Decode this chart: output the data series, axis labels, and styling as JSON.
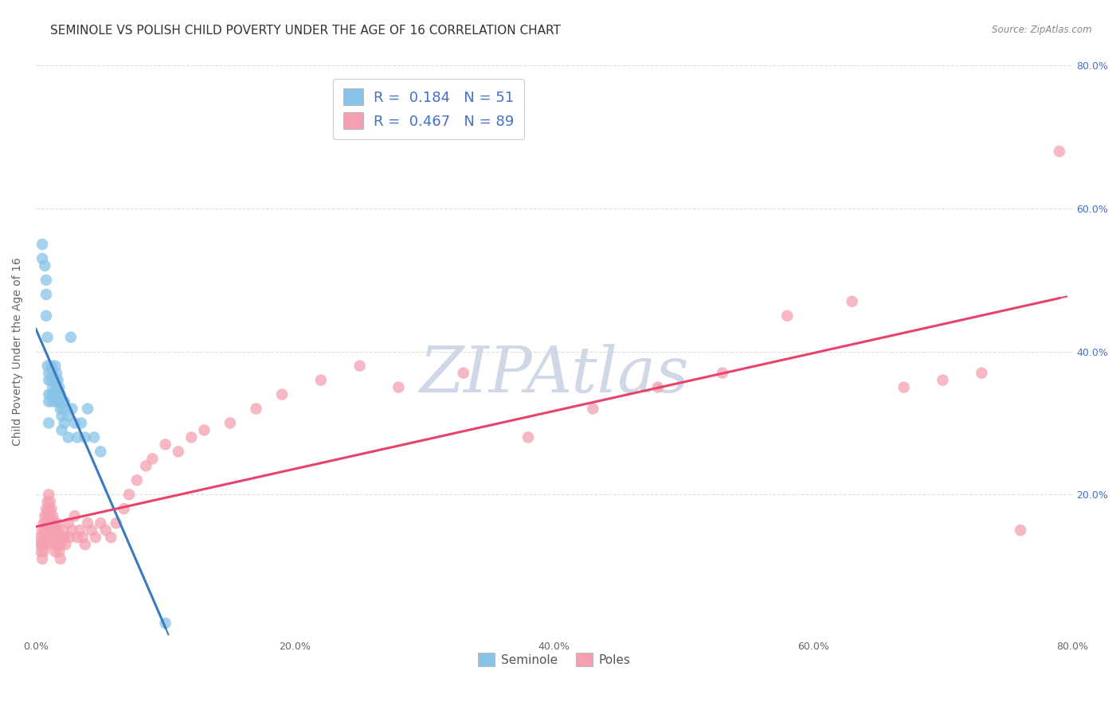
{
  "title": "SEMINOLE VS POLISH CHILD POVERTY UNDER THE AGE OF 16 CORRELATION CHART",
  "source": "Source: ZipAtlas.com",
  "ylabel": "Child Poverty Under the Age of 16",
  "xlim": [
    0.0,
    0.8
  ],
  "ylim": [
    0.0,
    0.8
  ],
  "xtick_labels": [
    "0.0%",
    "20.0%",
    "40.0%",
    "60.0%",
    "80.0%"
  ],
  "xtick_vals": [
    0.0,
    0.2,
    0.4,
    0.6,
    0.8
  ],
  "ytick_labels": [
    "20.0%",
    "40.0%",
    "60.0%",
    "80.0%"
  ],
  "ytick_vals": [
    0.2,
    0.4,
    0.6,
    0.8
  ],
  "seminole_R": "0.184",
  "seminole_N": "51",
  "poles_R": "0.467",
  "poles_N": "89",
  "seminole_color": "#88c4e8",
  "poles_color": "#f4a0b0",
  "seminole_line_color": "#3a7abf",
  "poles_line_color": "#e8436a",
  "dashed_line_color": "#aaccee",
  "watermark": "ZIPAtlas",
  "watermark_color": "#d0d8e8",
  "seminole_x": [
    0.005,
    0.005,
    0.007,
    0.008,
    0.008,
    0.008,
    0.009,
    0.009,
    0.01,
    0.01,
    0.01,
    0.01,
    0.01,
    0.012,
    0.012,
    0.012,
    0.013,
    0.013,
    0.013,
    0.014,
    0.014,
    0.015,
    0.015,
    0.015,
    0.016,
    0.016,
    0.016,
    0.017,
    0.017,
    0.018,
    0.018,
    0.019,
    0.019,
    0.02,
    0.02,
    0.02,
    0.021,
    0.022,
    0.022,
    0.025,
    0.025,
    0.027,
    0.028,
    0.03,
    0.032,
    0.035,
    0.038,
    0.04,
    0.045,
    0.05,
    0.1
  ],
  "seminole_y": [
    0.55,
    0.53,
    0.52,
    0.5,
    0.48,
    0.45,
    0.42,
    0.38,
    0.37,
    0.36,
    0.34,
    0.33,
    0.3,
    0.38,
    0.36,
    0.34,
    0.37,
    0.35,
    0.33,
    0.36,
    0.34,
    0.38,
    0.36,
    0.34,
    0.37,
    0.35,
    0.33,
    0.36,
    0.34,
    0.35,
    0.33,
    0.34,
    0.32,
    0.33,
    0.31,
    0.29,
    0.32,
    0.33,
    0.3,
    0.31,
    0.28,
    0.42,
    0.32,
    0.3,
    0.28,
    0.3,
    0.28,
    0.32,
    0.28,
    0.26,
    0.02
  ],
  "poles_x": [
    0.003,
    0.004,
    0.004,
    0.005,
    0.005,
    0.005,
    0.006,
    0.006,
    0.006,
    0.007,
    0.007,
    0.007,
    0.008,
    0.008,
    0.008,
    0.009,
    0.009,
    0.009,
    0.01,
    0.01,
    0.01,
    0.01,
    0.011,
    0.011,
    0.011,
    0.012,
    0.012,
    0.012,
    0.013,
    0.013,
    0.014,
    0.014,
    0.015,
    0.015,
    0.015,
    0.016,
    0.016,
    0.017,
    0.017,
    0.018,
    0.018,
    0.019,
    0.019,
    0.02,
    0.021,
    0.022,
    0.023,
    0.025,
    0.026,
    0.028,
    0.03,
    0.032,
    0.034,
    0.036,
    0.038,
    0.04,
    0.043,
    0.046,
    0.05,
    0.054,
    0.058,
    0.062,
    0.068,
    0.072,
    0.078,
    0.085,
    0.09,
    0.1,
    0.11,
    0.12,
    0.13,
    0.15,
    0.17,
    0.19,
    0.22,
    0.25,
    0.28,
    0.33,
    0.38,
    0.43,
    0.48,
    0.53,
    0.58,
    0.63,
    0.67,
    0.7,
    0.73,
    0.76,
    0.79
  ],
  "poles_y": [
    0.14,
    0.13,
    0.12,
    0.15,
    0.13,
    0.11,
    0.16,
    0.14,
    0.12,
    0.17,
    0.15,
    0.13,
    0.18,
    0.16,
    0.14,
    0.19,
    0.17,
    0.14,
    0.2,
    0.18,
    0.16,
    0.13,
    0.19,
    0.17,
    0.15,
    0.18,
    0.16,
    0.14,
    0.17,
    0.15,
    0.16,
    0.14,
    0.15,
    0.13,
    0.12,
    0.16,
    0.14,
    0.15,
    0.13,
    0.14,
    0.12,
    0.13,
    0.11,
    0.14,
    0.15,
    0.14,
    0.13,
    0.16,
    0.14,
    0.15,
    0.17,
    0.14,
    0.15,
    0.14,
    0.13,
    0.16,
    0.15,
    0.14,
    0.16,
    0.15,
    0.14,
    0.16,
    0.18,
    0.2,
    0.22,
    0.24,
    0.25,
    0.27,
    0.26,
    0.28,
    0.29,
    0.3,
    0.32,
    0.34,
    0.36,
    0.38,
    0.35,
    0.37,
    0.28,
    0.32,
    0.35,
    0.37,
    0.45,
    0.47,
    0.35,
    0.36,
    0.37,
    0.15,
    0.68
  ],
  "background_color": "#ffffff",
  "grid_color": "#dddddd",
  "title_fontsize": 11,
  "label_fontsize": 10,
  "tick_fontsize": 9,
  "legend_fontsize": 13,
  "right_tick_color": "#4472c4"
}
